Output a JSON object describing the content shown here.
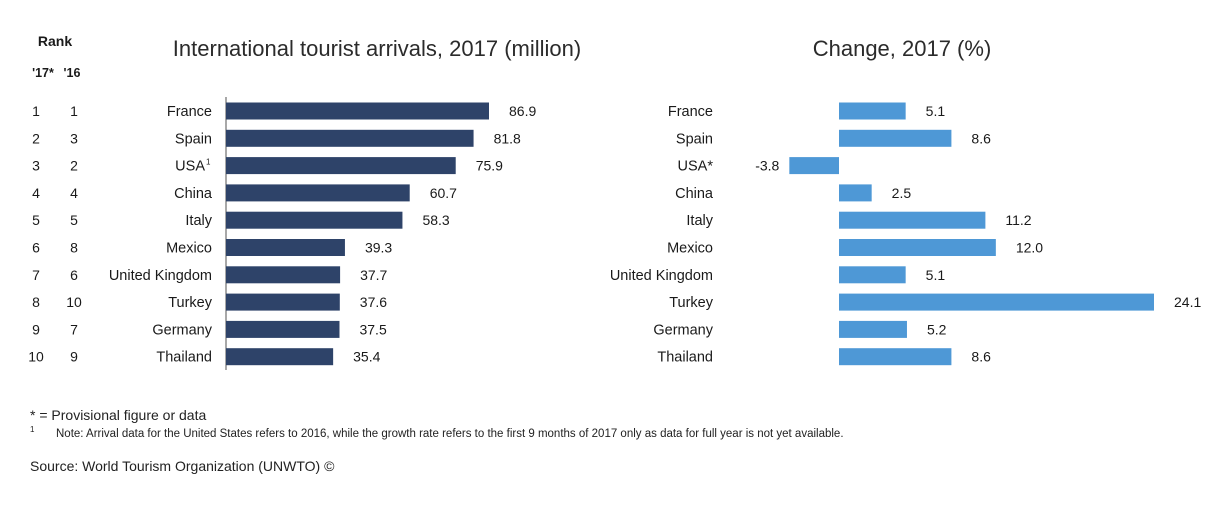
{
  "chart_data": [
    {
      "type": "bar",
      "orientation": "horizontal",
      "title": "International tourist arrivals, 2017 (million)",
      "rank_header": "Rank",
      "rank_columns": [
        "'17*",
        "'16"
      ],
      "categories": [
        "France",
        "Spain",
        "USA",
        "China",
        "Italy",
        "Mexico",
        "United Kingdom",
        "Turkey",
        "Germany",
        "Thailand"
      ],
      "category_superscripts": [
        "",
        "",
        "1",
        "",
        "",
        "",
        "",
        "",
        "",
        ""
      ],
      "rank_2017": [
        "1",
        "2",
        "3",
        "4",
        "5",
        "6",
        "7",
        "8",
        "9",
        "10"
      ],
      "rank_2016": [
        "1",
        "3",
        "2",
        "4",
        "5",
        "8",
        "6",
        "10",
        "7",
        "9"
      ],
      "values": [
        86.9,
        81.8,
        75.9,
        60.7,
        58.3,
        39.3,
        37.7,
        37.6,
        37.5,
        35.4
      ],
      "value_labels": [
        "86.9",
        "81.8",
        "75.9",
        "60.7",
        "58.3",
        "39.3",
        "37.7",
        "37.6",
        "37.5",
        "35.4"
      ],
      "xlim": [
        0,
        90
      ],
      "color": "#2e4369",
      "grid": false
    },
    {
      "type": "bar",
      "orientation": "horizontal",
      "title": "Change, 2017 (%)",
      "categories": [
        "France",
        "Spain",
        "USA*",
        "China",
        "Italy",
        "Mexico",
        "United Kingdom",
        "Turkey",
        "Germany",
        "Thailand"
      ],
      "values": [
        5.1,
        8.6,
        -3.8,
        2.5,
        11.2,
        12.0,
        5.1,
        24.1,
        5.2,
        8.6
      ],
      "value_labels": [
        "5.1",
        "8.6",
        "-3.8",
        "2.5",
        "11.2",
        "12.0",
        "5.1",
        "24.1",
        "5.2",
        "8.6"
      ],
      "xlim": [
        -3.8,
        24.1
      ],
      "color": "#4e98d6",
      "grid": false
    }
  ],
  "footnotes": {
    "provisional": "* = Provisional figure or data",
    "note_marker": "1",
    "note": "Note: Arrival data for the United States refers to 2016, while the growth rate refers to the first 9 months of 2017 only as data for full year is not yet available."
  },
  "source": "Source: World Tourism Organization (UNWTO) ©"
}
